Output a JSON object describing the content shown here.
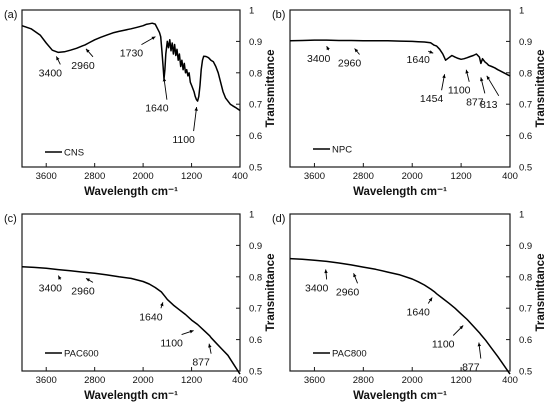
{
  "chart_data": [
    {
      "panel_label": "(a)",
      "type": "line",
      "xlabel": "Wavelength cm⁻¹",
      "ylabel": "Transmittance",
      "x_range": [
        4000,
        400
      ],
      "ylim": [
        0.5,
        1.0
      ],
      "x_ticks": [
        3600,
        2800,
        2000,
        1200,
        400
      ],
      "y_ticks": [
        0.5,
        0.6,
        0.7,
        0.8,
        0.9,
        1
      ],
      "legend": "top-left",
      "series": [
        {
          "name": "CNS",
          "x": [
            4000,
            3850,
            3700,
            3600,
            3500,
            3400,
            3300,
            3200,
            3100,
            3000,
            2960,
            2900,
            2800,
            2700,
            2600,
            2500,
            2400,
            2300,
            2200,
            2100,
            2000,
            1950,
            1900,
            1850,
            1800,
            1760,
            1730,
            1710,
            1690,
            1670,
            1655,
            1640,
            1625,
            1600,
            1580,
            1560,
            1540,
            1520,
            1500,
            1480,
            1460,
            1440,
            1420,
            1400,
            1380,
            1360,
            1340,
            1320,
            1300,
            1280,
            1260,
            1240,
            1220,
            1200,
            1180,
            1160,
            1140,
            1120,
            1100,
            1080,
            1060,
            1040,
            1020,
            1000,
            960,
            920,
            880,
            840,
            800,
            760,
            720,
            680,
            640,
            600,
            560,
            520,
            480,
            440,
            400
          ],
          "y": [
            0.95,
            0.94,
            0.92,
            0.895,
            0.872,
            0.865,
            0.867,
            0.872,
            0.878,
            0.886,
            0.889,
            0.895,
            0.905,
            0.913,
            0.92,
            0.927,
            0.932,
            0.936,
            0.94,
            0.945,
            0.95,
            0.954,
            0.956,
            0.958,
            0.955,
            0.94,
            0.928,
            0.915,
            0.87,
            0.82,
            0.78,
            0.81,
            0.86,
            0.9,
            0.88,
            0.905,
            0.87,
            0.895,
            0.86,
            0.89,
            0.855,
            0.875,
            0.84,
            0.86,
            0.82,
            0.84,
            0.81,
            0.83,
            0.8,
            0.81,
            0.79,
            0.8,
            0.77,
            0.76,
            0.75,
            0.74,
            0.725,
            0.715,
            0.71,
            0.725,
            0.76,
            0.81,
            0.84,
            0.853,
            0.852,
            0.848,
            0.84,
            0.835,
            0.82,
            0.8,
            0.77,
            0.74,
            0.72,
            0.71,
            0.7,
            0.695,
            0.69,
            0.685,
            0.68
          ]
        }
      ],
      "annotations": [
        {
          "text": "3400",
          "x": 3400
        },
        {
          "text": "2960",
          "x": 2960
        },
        {
          "text": "1730",
          "x": 1730
        },
        {
          "text": "1640",
          "x": 1640
        },
        {
          "text": "1100",
          "x": 1100
        }
      ]
    },
    {
      "panel_label": "(b)",
      "type": "line",
      "xlabel": "Wavelength cm⁻¹",
      "ylabel": "Transmittance",
      "x_range": [
        4000,
        400
      ],
      "ylim": [
        0.5,
        1.0
      ],
      "x_ticks": [
        3600,
        2800,
        2000,
        1200,
        400
      ],
      "y_ticks": [
        0.5,
        0.6,
        0.7,
        0.8,
        0.9,
        1
      ],
      "legend": "bottom-left",
      "series": [
        {
          "name": "NPC",
          "x": [
            4000,
            3800,
            3600,
            3400,
            3200,
            3000,
            2800,
            2600,
            2400,
            2200,
            2000,
            1900,
            1800,
            1700,
            1640,
            1600,
            1550,
            1500,
            1454,
            1400,
            1350,
            1300,
            1250,
            1200,
            1150,
            1100,
            1050,
            1000,
            950,
            900,
            877,
            850,
            813,
            780,
            750,
            700,
            650,
            600,
            550,
            500,
            450,
            400
          ],
          "y": [
            0.902,
            0.903,
            0.904,
            0.904,
            0.903,
            0.903,
            0.902,
            0.902,
            0.902,
            0.901,
            0.9,
            0.899,
            0.898,
            0.896,
            0.888,
            0.885,
            0.875,
            0.86,
            0.84,
            0.848,
            0.855,
            0.85,
            0.846,
            0.843,
            0.845,
            0.848,
            0.852,
            0.855,
            0.86,
            0.85,
            0.83,
            0.845,
            0.835,
            0.83,
            0.824,
            0.82,
            0.816,
            0.81,
            0.805,
            0.8,
            0.795,
            0.79
          ]
        }
      ],
      "annotations": [
        {
          "text": "3400",
          "x": 3400
        },
        {
          "text": "2960",
          "x": 2960
        },
        {
          "text": "1640",
          "x": 1640
        },
        {
          "text": "1454",
          "x": 1454
        },
        {
          "text": "1100",
          "x": 1100
        },
        {
          "text": "877",
          "x": 877
        },
        {
          "text": "813",
          "x": 813
        }
      ]
    },
    {
      "panel_label": "(c)",
      "type": "line",
      "xlabel": "Wavelength cm⁻¹",
      "ylabel": "Transmittance",
      "x_range": [
        4000,
        400
      ],
      "ylim": [
        0.5,
        1.0
      ],
      "x_ticks": [
        3600,
        2800,
        2000,
        1200,
        400
      ],
      "y_ticks": [
        0.5,
        0.6,
        0.7,
        0.8,
        0.9,
        1
      ],
      "legend": "bottom-left",
      "series": [
        {
          "name": "PAC600",
          "x": [
            4000,
            3800,
            3600,
            3400,
            3200,
            3000,
            2800,
            2600,
            2400,
            2200,
            2000,
            1900,
            1800,
            1700,
            1640,
            1600,
            1500,
            1400,
            1300,
            1200,
            1100,
            1000,
            900,
            877,
            800,
            700,
            600,
            500,
            400
          ],
          "y": [
            0.832,
            0.83,
            0.827,
            0.823,
            0.819,
            0.815,
            0.811,
            0.806,
            0.8,
            0.795,
            0.785,
            0.777,
            0.766,
            0.752,
            0.738,
            0.728,
            0.71,
            0.695,
            0.68,
            0.662,
            0.648,
            0.63,
            0.612,
            0.606,
            0.59,
            0.57,
            0.55,
            0.52,
            0.49
          ]
        }
      ],
      "annotations": [
        {
          "text": "3400",
          "x": 3400
        },
        {
          "text": "2960",
          "x": 2960
        },
        {
          "text": "1640",
          "x": 1640
        },
        {
          "text": "1100",
          "x": 1100
        },
        {
          "text": "877",
          "x": 877
        }
      ]
    },
    {
      "panel_label": "(d)",
      "type": "line",
      "xlabel": "Wavelength cm⁻¹",
      "ylabel": "Transmittance",
      "x_range": [
        4000,
        400
      ],
      "ylim": [
        0.5,
        1.0
      ],
      "x_ticks": [
        3600,
        2800,
        2000,
        1200,
        400
      ],
      "y_ticks": [
        0.5,
        0.6,
        0.7,
        0.8,
        0.9,
        1
      ],
      "legend": "bottom-left",
      "series": [
        {
          "name": "PAC800",
          "x": [
            4000,
            3800,
            3600,
            3400,
            3200,
            3000,
            2800,
            2600,
            2400,
            2200,
            2000,
            1900,
            1800,
            1700,
            1640,
            1600,
            1500,
            1400,
            1300,
            1200,
            1100,
            1000,
            900,
            877,
            800,
            700,
            600,
            500,
            400
          ],
          "y": [
            0.858,
            0.856,
            0.853,
            0.849,
            0.844,
            0.838,
            0.831,
            0.824,
            0.815,
            0.806,
            0.793,
            0.784,
            0.774,
            0.761,
            0.753,
            0.746,
            0.731,
            0.716,
            0.7,
            0.682,
            0.664,
            0.643,
            0.622,
            0.616,
            0.598,
            0.572,
            0.546,
            0.518,
            0.49
          ]
        }
      ],
      "annotations": [
        {
          "text": "3400",
          "x": 3400
        },
        {
          "text": "2960",
          "x": 2960
        },
        {
          "text": "1640",
          "x": 1640
        },
        {
          "text": "1100",
          "x": 1100
        },
        {
          "text": "877",
          "x": 877
        }
      ]
    }
  ]
}
